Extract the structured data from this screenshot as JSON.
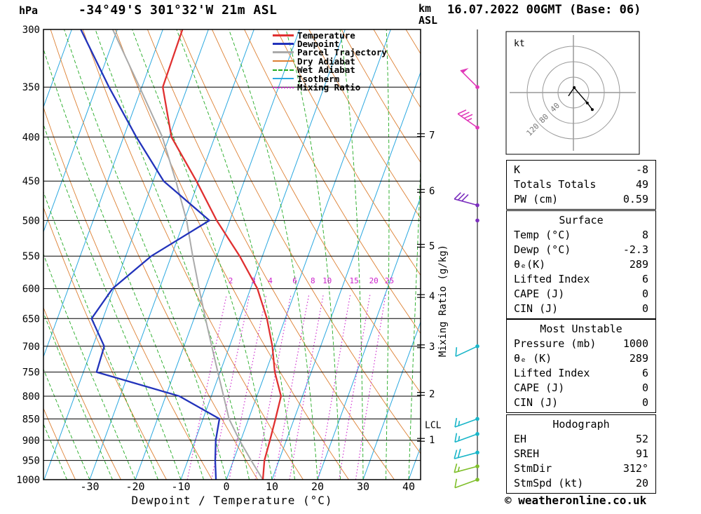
{
  "header": {
    "pressure_unit": "hPa",
    "station_title": "-34°49'S 301°32'W 21m ASL",
    "km_label": "km",
    "asl_label": "ASL",
    "datetime_title": "16.07.2022 00GMT (Base: 06)"
  },
  "axes": {
    "x_label": "Dewpoint / Temperature (°C)",
    "x_ticks": [
      -30,
      -20,
      -10,
      0,
      10,
      20,
      30,
      40
    ],
    "pressure_ticks": [
      300,
      350,
      400,
      450,
      500,
      550,
      600,
      650,
      700,
      750,
      800,
      850,
      900,
      950,
      1000
    ],
    "km_ticks": [
      1,
      2,
      3,
      4,
      5,
      6,
      7
    ],
    "lcl_label": "LCL",
    "mixing_ratio_axis_label": "Mixing Ratio (g/kg)"
  },
  "legend": [
    {
      "label": "Temperature",
      "color": "#e03030",
      "style": "solid"
    },
    {
      "label": "Dewpoint",
      "color": "#2233bb",
      "style": "solid"
    },
    {
      "label": "Parcel Trajectory",
      "color": "#aaaaaa",
      "style": "solid"
    },
    {
      "label": "Dry Adiabat",
      "color": "#dd8033",
      "style": "solid"
    },
    {
      "label": "Wet Adiabat",
      "color": "#22aa22",
      "style": "dashed"
    },
    {
      "label": "Isotherm",
      "color": "#2ba8e0",
      "style": "solid"
    },
    {
      "label": "Mixing Ratio",
      "color": "#cc22cc",
      "style": "dotted"
    }
  ],
  "hodograph": {
    "unit_label": "kt",
    "ring_labels": [
      "40",
      "80",
      "120"
    ]
  },
  "tables": [
    {
      "name": "indices-table",
      "title": null,
      "rows": [
        {
          "label": "K",
          "value": "-8"
        },
        {
          "label": "Totals Totals",
          "value": "49"
        },
        {
          "label": "PW (cm)",
          "value": "0.59"
        }
      ]
    },
    {
      "name": "surface-table",
      "title": "Surface",
      "rows": [
        {
          "label": "Temp (°C)",
          "value": "8"
        },
        {
          "label": "Dewp (°C)",
          "value": "-2.3"
        },
        {
          "label": "θₑ(K)",
          "value": "289"
        },
        {
          "label": "Lifted Index",
          "value": "6"
        },
        {
          "label": "CAPE (J)",
          "value": "0"
        },
        {
          "label": "CIN (J)",
          "value": "0"
        }
      ]
    },
    {
      "name": "most-unstable-table",
      "title": "Most Unstable",
      "rows": [
        {
          "label": "Pressure (mb)",
          "value": "1000"
        },
        {
          "label": "θₑ (K)",
          "value": "289"
        },
        {
          "label": "Lifted Index",
          "value": "6"
        },
        {
          "label": "CAPE (J)",
          "value": "0"
        },
        {
          "label": "CIN (J)",
          "value": "0"
        }
      ]
    },
    {
      "name": "hodograph-table",
      "title": "Hodograph",
      "rows": [
        {
          "label": "EH",
          "value": "52"
        },
        {
          "label": "SREH",
          "value": "91"
        },
        {
          "label": "StmDir",
          "value": "312°"
        },
        {
          "label": "StmSpd (kt)",
          "value": "20"
        }
      ]
    }
  ],
  "footer": {
    "copyright": "© weatheronline.co.uk"
  },
  "chart_data": {
    "type": "skew-t-log-p",
    "pressure_range_hpa": [
      300,
      1000
    ],
    "temperature_range_c": [
      -30,
      40
    ],
    "isotherm_step_c": 10,
    "dry_adiabat_step_k": 10,
    "wet_adiabat_step_c": 5,
    "mixing_ratio_lines_g_kg": [
      2,
      3,
      4,
      6,
      8,
      10,
      15,
      20,
      25
    ],
    "lcl_pressure_hpa": 865,
    "km_pressure_map": {
      "1": 899,
      "2": 795,
      "3": 700,
      "4": 612,
      "5": 535,
      "6": 462,
      "7": 398
    },
    "profiles": {
      "pressure_hpa": [
        1000,
        950,
        900,
        850,
        800,
        750,
        700,
        650,
        600,
        550,
        500,
        450,
        400,
        350,
        300
      ],
      "temperature_c": [
        8,
        6.8,
        6.4,
        5.9,
        5.3,
        2.0,
        -0.6,
        -4.0,
        -8.5,
        -15.0,
        -22.9,
        -30.5,
        -39.5,
        -45.4,
        -45.7
      ],
      "dewpoint_c": [
        -2.3,
        -4.0,
        -5.5,
        -6.4,
        -17.0,
        -37.1,
        -37.5,
        -42.5,
        -40.3,
        -34.4,
        -24.5,
        -37.7,
        -47.2,
        -57.2,
        -68.0
      ],
      "parcel_c": [
        8,
        3.9,
        -0.3,
        -4.3,
        -7.3,
        -10.5,
        -13.9,
        -17.5,
        -21.3,
        -25.3,
        -29.5,
        -35.0,
        -41.5,
        -50.5,
        -61.0
      ]
    },
    "wind_barbs": [
      {
        "pressure_hpa": 350,
        "speed_kt": 50,
        "dir_deg": 315,
        "color": "#e038b8"
      },
      {
        "pressure_hpa": 390,
        "speed_kt": 35,
        "dir_deg": 305,
        "color": "#e038b8"
      },
      {
        "pressure_hpa": 480,
        "speed_kt": 30,
        "dir_deg": 285,
        "color": "#7b2fbe"
      },
      {
        "pressure_hpa": 500,
        "speed_kt": 0,
        "dir_deg": 0,
        "color": "#7b2fbe"
      },
      {
        "pressure_hpa": 700,
        "speed_kt": 10,
        "dir_deg": 245,
        "color": "#18b5c8"
      },
      {
        "pressure_hpa": 850,
        "speed_kt": 15,
        "dir_deg": 250,
        "color": "#18b5c8"
      },
      {
        "pressure_hpa": 885,
        "speed_kt": 15,
        "dir_deg": 250,
        "color": "#18b5c8"
      },
      {
        "pressure_hpa": 930,
        "speed_kt": 20,
        "dir_deg": 255,
        "color": "#18b5c8"
      },
      {
        "pressure_hpa": 965,
        "speed_kt": 15,
        "dir_deg": 255,
        "color": "#7fbf2a"
      },
      {
        "pressure_hpa": 1000,
        "speed_kt": 10,
        "dir_deg": 250,
        "color": "#7fbf2a"
      }
    ],
    "hodograph_trace_kt": [
      [
        -13,
        -9
      ],
      [
        2,
        13
      ],
      [
        9,
        4
      ],
      [
        36,
        -27
      ],
      [
        49,
        -44
      ]
    ],
    "colors": {
      "temperature": "#e03030",
      "dewpoint": "#2233bb",
      "parcel": "#aaaaaa",
      "dry_adiabat": "#dd8033",
      "wet_adiabat": "#22aa22",
      "isotherm": "#2ba8e0",
      "mixing_ratio": "#cc22cc",
      "grid": "#000000"
    }
  }
}
